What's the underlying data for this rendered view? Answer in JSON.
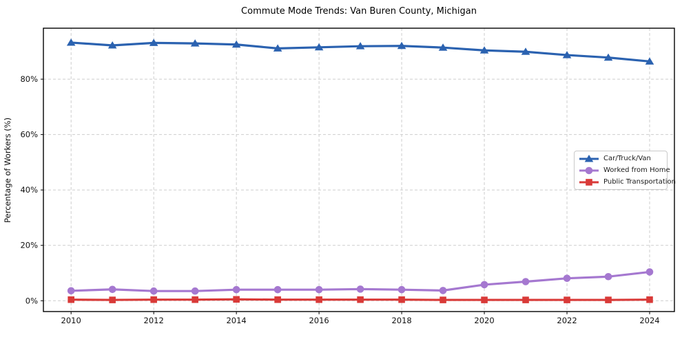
{
  "chart_data": {
    "type": "line",
    "title": "Commute Mode Trends: Van Buren County, Michigan",
    "xlabel": "",
    "ylabel": "Percentage of Workers (%)",
    "x": [
      2010,
      2011,
      2012,
      2013,
      2014,
      2015,
      2016,
      2017,
      2018,
      2019,
      2020,
      2021,
      2022,
      2023,
      2024
    ],
    "xticks": [
      2010,
      2012,
      2014,
      2016,
      2018,
      2020,
      2022,
      2024
    ],
    "xtick_labels": [
      "2010",
      "2012",
      "2014",
      "2016",
      "2018",
      "2020",
      "2022",
      "2024"
    ],
    "yticks": [
      0,
      20,
      40,
      60,
      80
    ],
    "ytick_labels": [
      "0%",
      "20%",
      "40%",
      "60%",
      "80%"
    ],
    "xlim": [
      2009.33,
      2024.6
    ],
    "ylim": [
      -3.9,
      98.4
    ],
    "grid": "dashed",
    "grid_color": "#cdcdcd",
    "legend_position": "center-right",
    "series": [
      {
        "name": "Car/Truck/Van",
        "color": "#2b62b0",
        "marker": "triangle",
        "values": [
          93.2,
          92.2,
          93.1,
          92.9,
          92.5,
          91.1,
          91.5,
          91.9,
          92.0,
          91.4,
          90.4,
          89.9,
          88.7,
          87.8,
          86.4
        ]
      },
      {
        "name": "Worked from Home",
        "color": "#a578d0",
        "marker": "circle",
        "values": [
          3.6,
          4.1,
          3.5,
          3.5,
          4.0,
          4.0,
          4.0,
          4.2,
          4.0,
          3.7,
          5.8,
          6.9,
          8.1,
          8.7,
          10.4
        ]
      },
      {
        "name": "Public Transportation",
        "color": "#d93a38",
        "marker": "square",
        "values": [
          0.4,
          0.3,
          0.4,
          0.4,
          0.5,
          0.4,
          0.4,
          0.4,
          0.4,
          0.3,
          0.3,
          0.3,
          0.3,
          0.3,
          0.4
        ]
      }
    ]
  }
}
